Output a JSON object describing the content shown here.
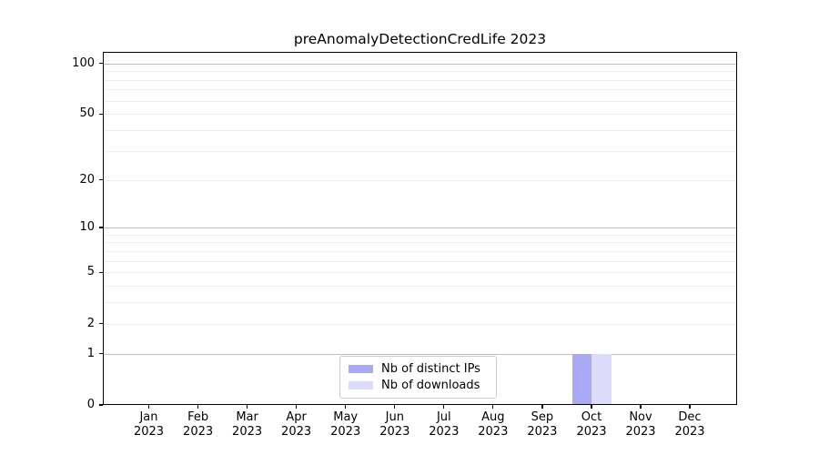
{
  "chart_data": {
    "type": "bar",
    "title": "preAnomalyDetectionCredLife 2023",
    "xlabel": "",
    "ylabel": "",
    "y_scale": "log1p",
    "ylim": [
      0,
      117
    ],
    "grid": "on",
    "legend_position": "lower center",
    "y_ticks": [
      100,
      50,
      20,
      10,
      5,
      2,
      1,
      0
    ],
    "y_major_gridlines": [
      100,
      10,
      1
    ],
    "y_minor_gridlines": [
      90,
      80,
      70,
      60,
      50,
      40,
      30,
      20,
      9,
      8,
      7,
      6,
      5,
      4,
      3,
      2
    ],
    "x_categories": [
      "Jan",
      "Feb",
      "Mar",
      "Apr",
      "May",
      "Jun",
      "Jul",
      "Aug",
      "Sep",
      "Oct",
      "Nov",
      "Dec"
    ],
    "x_year": "2023",
    "series": [
      {
        "name": "Nb of distinct IPs",
        "color": "#a9a9f6",
        "values": [
          0,
          0,
          0,
          0,
          0,
          0,
          0,
          0,
          0,
          1,
          0,
          0
        ]
      },
      {
        "name": "Nb of downloads",
        "color": "#dcdcfa",
        "values": [
          0,
          0,
          0,
          0,
          0,
          0,
          0,
          0,
          0,
          1,
          0,
          0
        ]
      }
    ]
  }
}
